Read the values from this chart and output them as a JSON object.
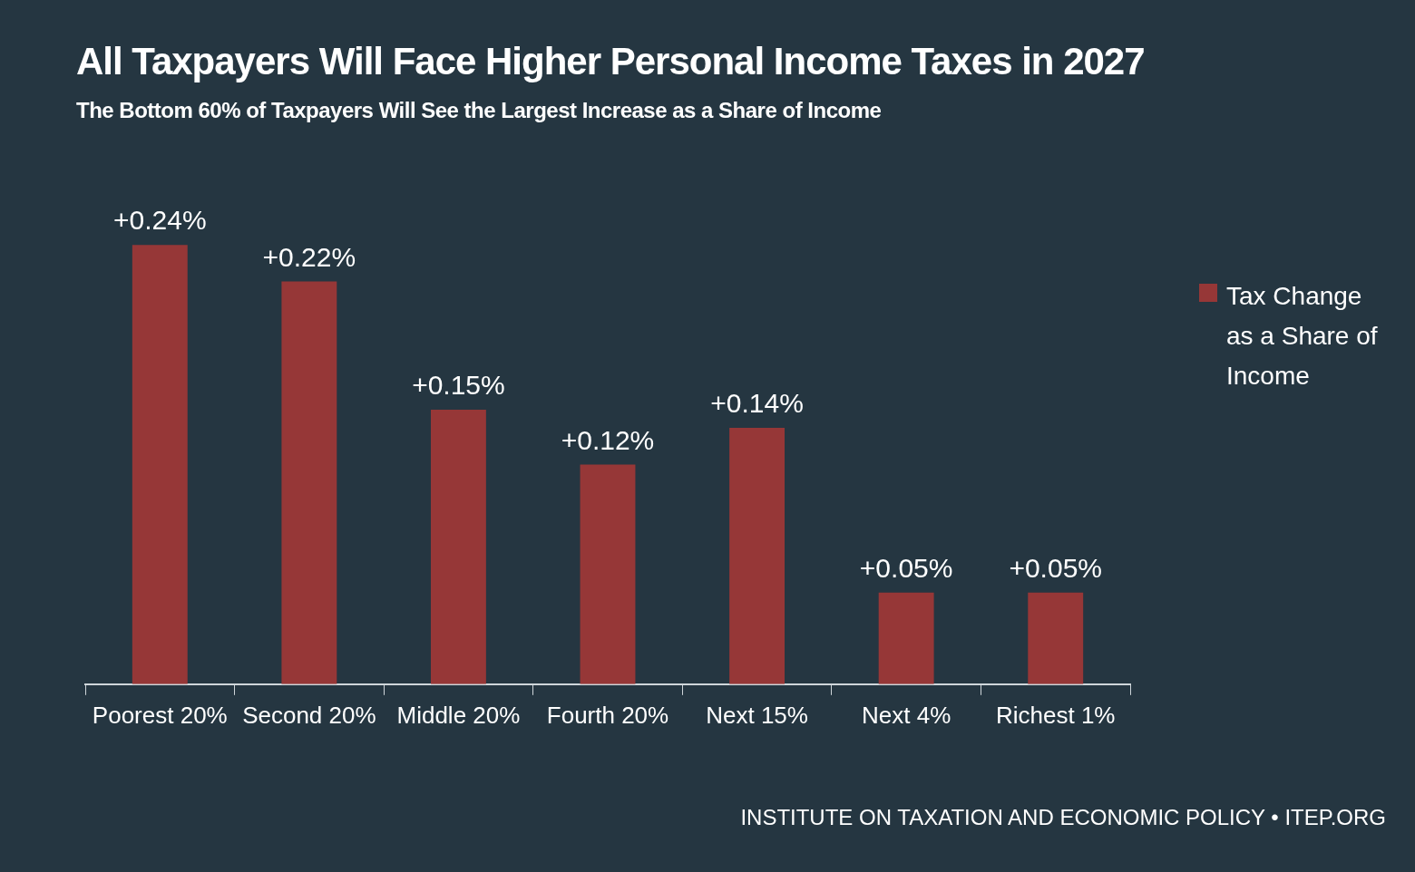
{
  "chart_data": {
    "type": "bar",
    "title": "All Taxpayers Will Face Higher Personal Income Taxes in 2027",
    "subtitle": "The Bottom 60% of Taxpayers Will See the Largest Increase as a Share of Income",
    "categories": [
      "Poorest 20%",
      "Second 20%",
      "Middle 20%",
      "Fourth 20%",
      "Next 15%",
      "Next 4%",
      "Richest 1%"
    ],
    "series": [
      {
        "name": "Tax Change as a Share of Income",
        "color": "#963737",
        "values": [
          0.24,
          0.22,
          0.15,
          0.12,
          0.14,
          0.05,
          0.05
        ],
        "value_labels": [
          "+0.24%",
          "+0.22%",
          "+0.15%",
          "+0.12%",
          "+0.14%",
          "+0.05%",
          "+0.05%"
        ]
      }
    ],
    "legend": "right",
    "grid": false,
    "annotations": [
      "INSTITUTE ON TAXATION AND ECONOMIC POLICY • ITEP.ORG"
    ]
  }
}
